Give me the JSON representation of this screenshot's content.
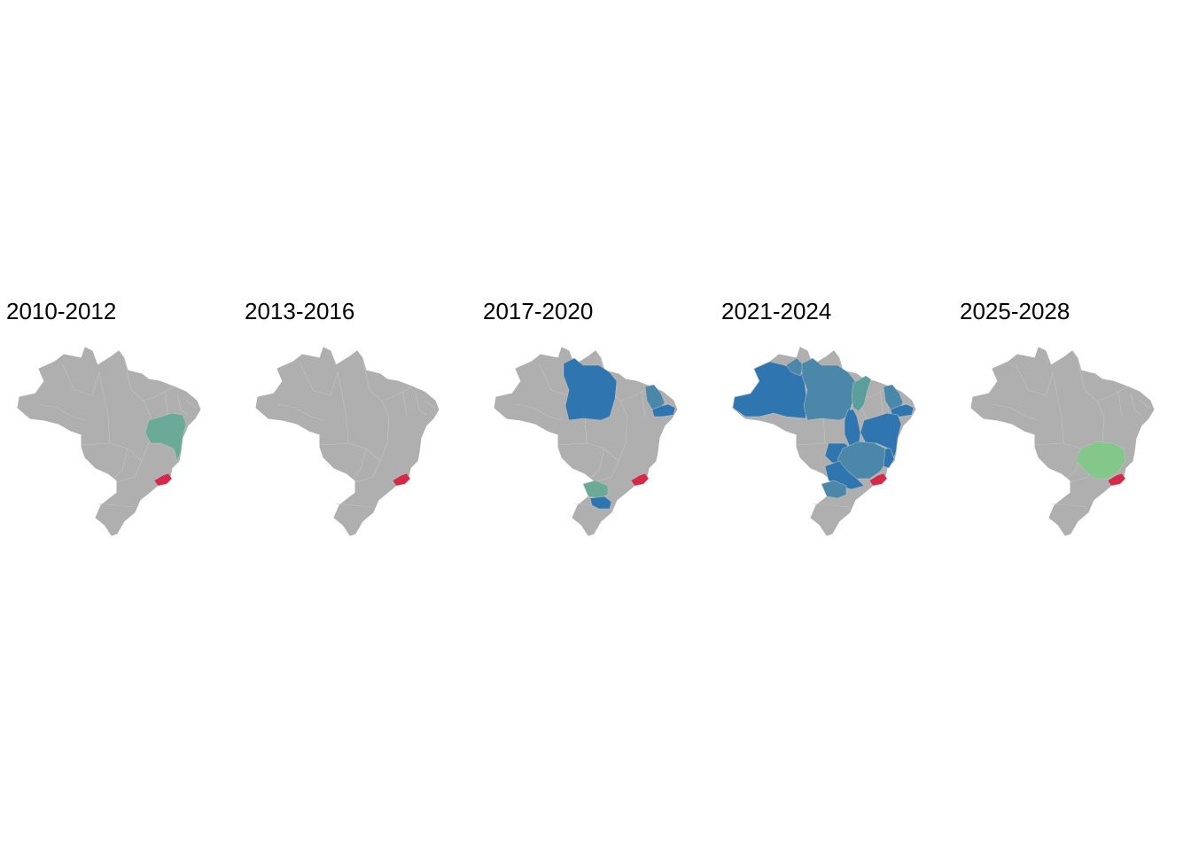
{
  "colors": {
    "background": "#ffffff",
    "base": "#afafaf",
    "border": "#c4c4c4",
    "red": "#d62848",
    "blue": "#2f76b1",
    "steel": "#4a87a8",
    "teal": "#5a9f9c",
    "sage": "#6aaa96",
    "green": "#84c78a"
  },
  "panels": [
    {
      "title": "2010-2012",
      "regions": [
        {
          "shape": "bahia",
          "color": "sage"
        },
        {
          "shape": "rio",
          "color": "red"
        }
      ]
    },
    {
      "title": "2013-2016",
      "regions": [
        {
          "shape": "rio",
          "color": "red"
        }
      ]
    },
    {
      "title": "2017-2020",
      "regions": [
        {
          "shape": "para",
          "color": "blue"
        },
        {
          "shape": "ceara",
          "color": "steel"
        },
        {
          "shape": "nordeste_coast",
          "color": "blue"
        },
        {
          "shape": "parana",
          "color": "sage"
        },
        {
          "shape": "santa_catarina",
          "color": "blue"
        },
        {
          "shape": "rio",
          "color": "red"
        }
      ]
    },
    {
      "title": "2021-2024",
      "regions": [
        {
          "shape": "amazonas",
          "color": "blue"
        },
        {
          "shape": "roraima",
          "color": "steel"
        },
        {
          "shape": "para",
          "color": "steel"
        },
        {
          "shape": "maranhao",
          "color": "teal"
        },
        {
          "shape": "ceara",
          "color": "steel"
        },
        {
          "shape": "nordeste_coast",
          "color": "blue"
        },
        {
          "shape": "tocantins",
          "color": "blue"
        },
        {
          "shape": "bahia",
          "color": "blue"
        },
        {
          "shape": "goias",
          "color": "blue"
        },
        {
          "shape": "minas",
          "color": "steel"
        },
        {
          "shape": "espirito",
          "color": "blue"
        },
        {
          "shape": "sao_paulo",
          "color": "blue"
        },
        {
          "shape": "parana",
          "color": "steel"
        },
        {
          "shape": "rio",
          "color": "red"
        }
      ]
    },
    {
      "title": "2025-2028",
      "regions": [
        {
          "shape": "minas",
          "color": "green"
        },
        {
          "shape": "rio",
          "color": "red"
        }
      ]
    }
  ]
}
